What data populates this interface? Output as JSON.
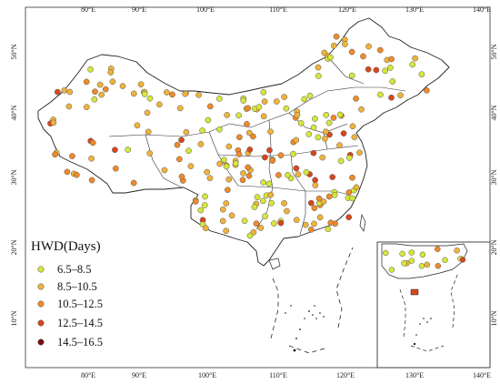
{
  "map": {
    "x_ticks": [
      "80°E",
      "90°E",
      "100°E",
      "110°E",
      "120°E",
      "130°E",
      "140°E"
    ],
    "y_ticks": [
      "20°N",
      "30°N",
      "40°N",
      "50°N"
    ],
    "y_ticks_left_bottom": "10°N",
    "inset_x_ticks": [
      "130°E",
      "140°E"
    ]
  },
  "legend": {
    "title": "HWD(Days)",
    "items": [
      {
        "label": "6.5–8.5",
        "color": "#d6e63a"
      },
      {
        "label": "8.5–10.5",
        "color": "#f0b33a"
      },
      {
        "label": "10.5–12.5",
        "color": "#ef8a2a"
      },
      {
        "label": "12.5–14.5",
        "color": "#d8461e"
      },
      {
        "label": "14.5–16.5",
        "color": "#7a0c0c"
      }
    ]
  },
  "colors": {
    "class1": "#d6e63a",
    "class2": "#f0b33a",
    "class3": "#ef8a2a",
    "class4": "#d8461e",
    "class5": "#7a0c0c",
    "border": "#333333"
  }
}
